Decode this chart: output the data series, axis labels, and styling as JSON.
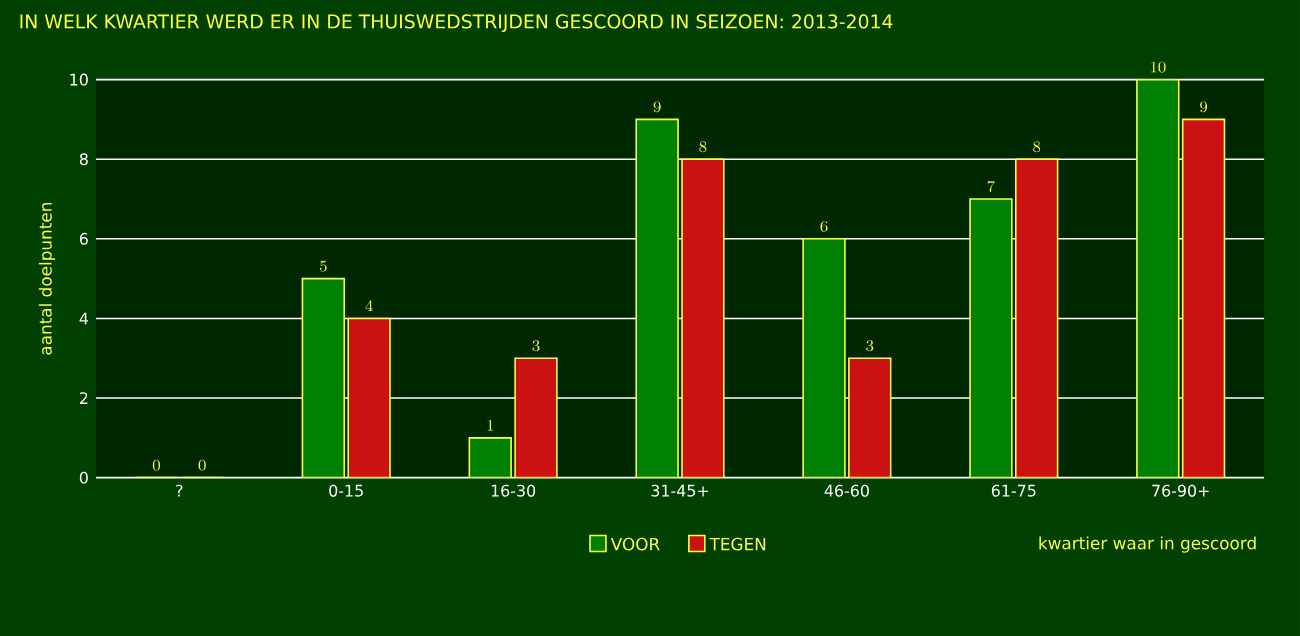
{
  "chart_data": {
    "type": "bar",
    "title": "IN WELK KWARTIER WERD ER IN DE THUISWEDSTRIJDEN GESCOORD IN SEIZOEN: 2013-2014",
    "xlabel": "kwartier waar in gescoord",
    "ylabel": "aantal doelpunten",
    "categories": [
      "?",
      "0-15",
      "16-30",
      "31-45+",
      "46-60",
      "61-75",
      "76-90+"
    ],
    "series": [
      {
        "name": "VOOR",
        "color": "#008000",
        "values": [
          0,
          5,
          1,
          9,
          6,
          7,
          10
        ]
      },
      {
        "name": "TEGEN",
        "color": "#cc1111",
        "values": [
          0,
          4,
          3,
          8,
          3,
          8,
          9
        ]
      }
    ],
    "ylim": [
      0,
      10
    ],
    "yticks": [
      0,
      2,
      4,
      6,
      8,
      10
    ],
    "grid": "y",
    "legend": "bottom",
    "data_labels": true
  }
}
